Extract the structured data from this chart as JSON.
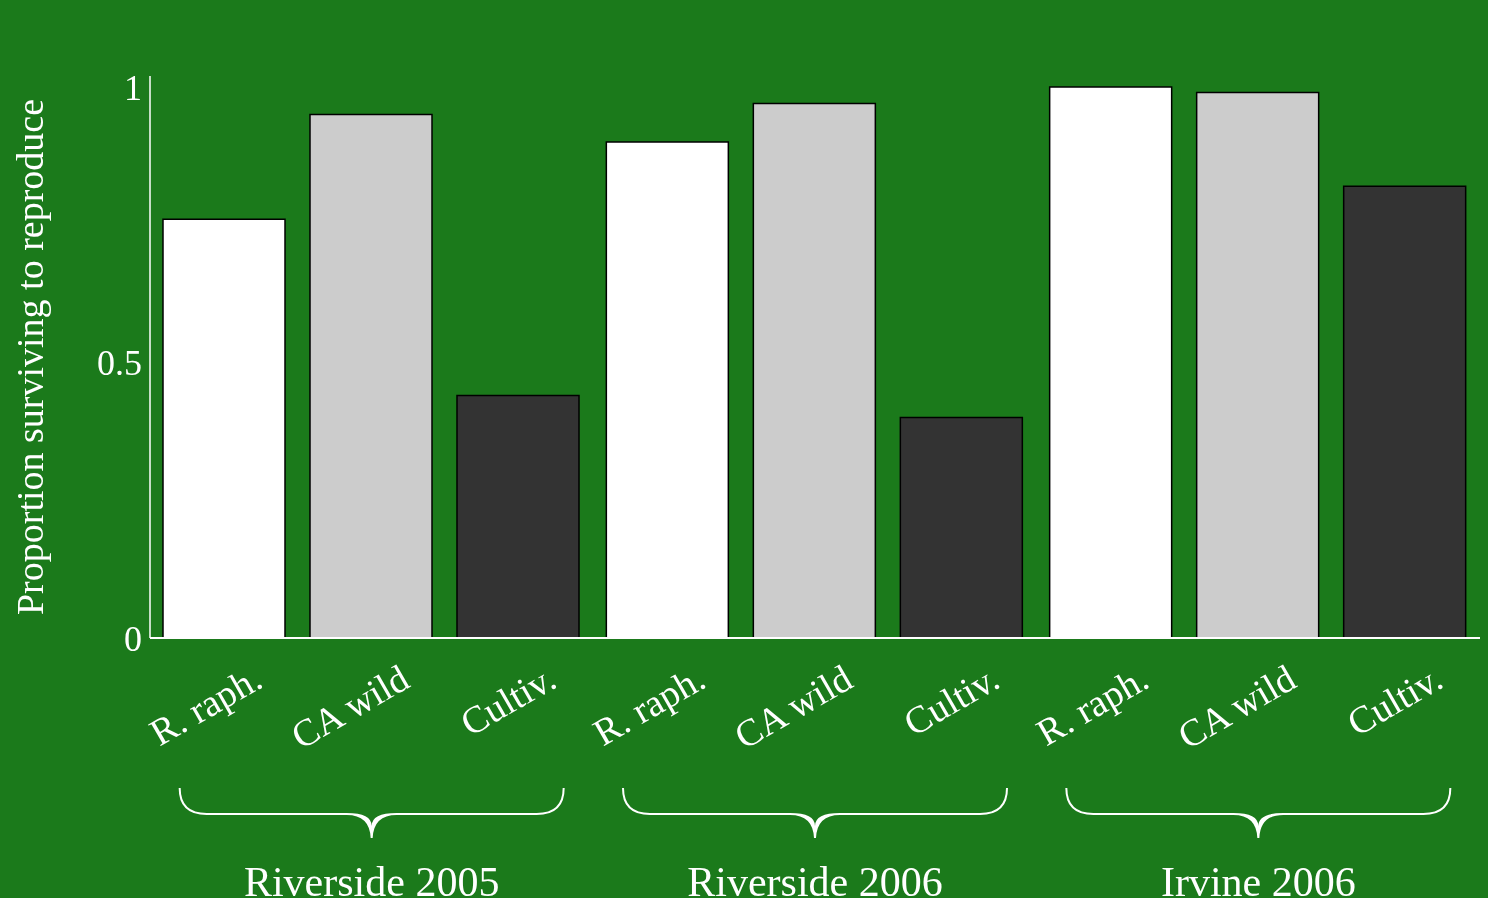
{
  "chart_data": {
    "type": "bar",
    "ylabel": "Proportion surviving to reproduce",
    "categories": [
      "Riverside 2005",
      "Riverside 2006",
      "Irvine 2006"
    ],
    "series": [
      {
        "name": "R. raph.",
        "color": "#ffffff",
        "values": [
          0.76,
          0.9,
          1.0
        ]
      },
      {
        "name": "CA wild",
        "color": "#cccccc",
        "values": [
          0.95,
          0.97,
          0.99
        ]
      },
      {
        "name": "Cultiv.",
        "color": "#333333",
        "values": [
          0.44,
          0.4,
          0.82
        ]
      }
    ],
    "ylim": [
      0,
      1.02
    ],
    "yticks": [
      0,
      {
        "value": 0.5,
        "label": "0.5"
      },
      1
    ],
    "grid": false,
    "legend": false
  }
}
